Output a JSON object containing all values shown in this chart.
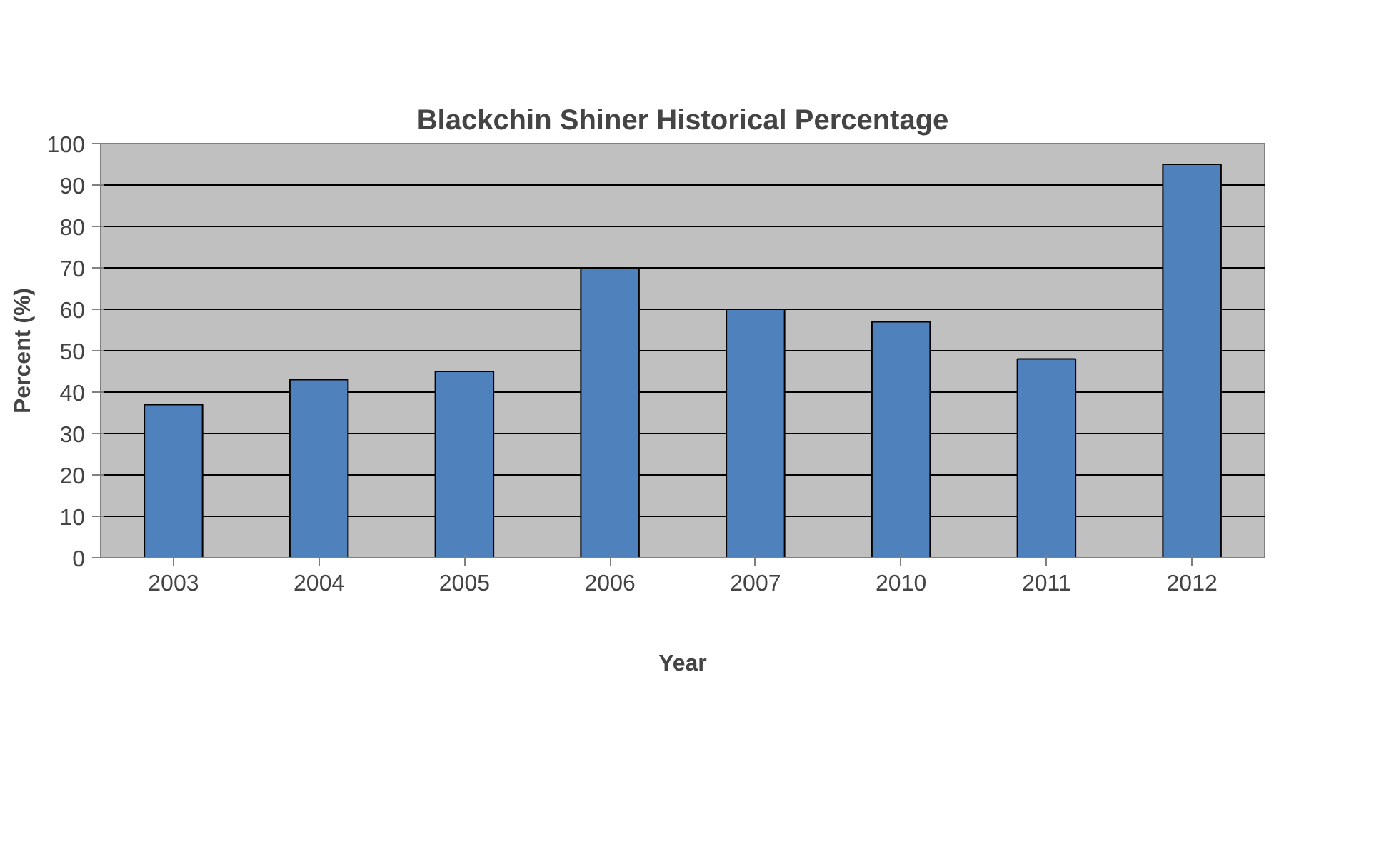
{
  "chart_data": {
    "type": "bar",
    "title": "Blackchin Shiner Historical Percentage",
    "xlabel": "Year",
    "ylabel": "Percent (%)",
    "categories": [
      "2003",
      "2004",
      "2005",
      "2006",
      "2007",
      "2010",
      "2011",
      "2012"
    ],
    "values": [
      37,
      43,
      45,
      70,
      60,
      57,
      48,
      95
    ],
    "color": "#4f81bd",
    "ylim": [
      0,
      100
    ],
    "yticks": [
      0,
      10,
      20,
      30,
      40,
      50,
      60,
      70,
      80,
      90,
      100
    ],
    "grid": "y"
  }
}
